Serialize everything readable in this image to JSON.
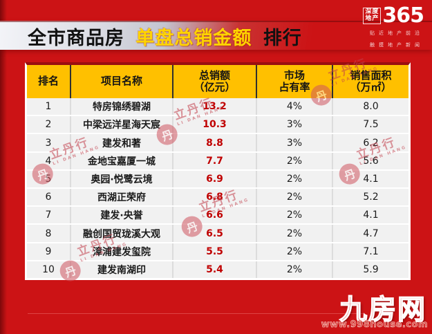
{
  "title": {
    "prefix": "全市商品房",
    "highlight": "单盘总销金额",
    "suffix": "排行"
  },
  "brand": {
    "small_line1": "深度",
    "small_line2": "地产",
    "big": "365",
    "tagline_line1": "贴近地产前沿",
    "tagline_line2": "触摸地产新闻"
  },
  "table": {
    "headers": {
      "rank": "排名",
      "name": "项目名称",
      "sales_line1": "总销额",
      "sales_line2": "（亿元）",
      "share_line1": "市场",
      "share_line2": "占有率",
      "area_line1": "销售面积",
      "area_line2": "（万㎡）"
    },
    "rows": [
      {
        "rank": "1",
        "name": "特房锦绣碧湖",
        "sales": "13.2",
        "share": "4%",
        "area": "8.0"
      },
      {
        "rank": "2",
        "name": "中梁远洋星海天宸",
        "sales": "10.3",
        "share": "3%",
        "area": "7.5"
      },
      {
        "rank": "3",
        "name": "建发和著",
        "sales": "8.8",
        "share": "3%",
        "area": "6.2"
      },
      {
        "rank": "4",
        "name": "金地宝嘉厦一城",
        "sales": "7.7",
        "share": "2%",
        "area": "5.6"
      },
      {
        "rank": "5",
        "name": "奥园·悦鹭云境",
        "sales": "6.9",
        "share": "2%",
        "area": "4.1"
      },
      {
        "rank": "6",
        "name": "西湖正荣府",
        "sales": "6.8",
        "share": "2%",
        "area": "5.2"
      },
      {
        "rank": "7",
        "name": "建发·央誉",
        "sales": "6.6",
        "share": "2%",
        "area": "4.1"
      },
      {
        "rank": "8",
        "name": "融创国贸珑溪大观",
        "sales": "6.5",
        "share": "2%",
        "area": "4.7"
      },
      {
        "rank": "9",
        "name": "漳浦建发玺院",
        "sales": "5.5",
        "share": "2%",
        "area": "7.1"
      },
      {
        "rank": "10",
        "name": "建发南湖印",
        "sales": "5.4",
        "share": "2%",
        "area": "5.9"
      }
    ]
  },
  "watermark": {
    "seal": "丹",
    "cn": "立丹行",
    "en": "LI DAN HANG"
  },
  "footer": {
    "site_name": "九房网",
    "site_url": "www.998house.com"
  },
  "colors": {
    "background": "#cc1315",
    "header_yellow": "#ffc000",
    "title_highlight": "#ffd400",
    "sales_red": "#c00000",
    "row_gray": "#f1f1f1"
  },
  "chart_data": {
    "type": "table",
    "title": "全市商品房 单盘总销金额 排行",
    "columns": [
      "排名",
      "项目名称",
      "总销额（亿元）",
      "市场占有率",
      "销售面积（万㎡）"
    ],
    "rows": [
      [
        "1",
        "特房锦绣碧湖",
        13.2,
        "4%",
        8.0
      ],
      [
        "2",
        "中梁远洋星海天宸",
        10.3,
        "3%",
        7.5
      ],
      [
        "3",
        "建发和著",
        8.8,
        "3%",
        6.2
      ],
      [
        "4",
        "金地宝嘉厦一城",
        7.7,
        "2%",
        5.6
      ],
      [
        "5",
        "奥园·悦鹭云境",
        6.9,
        "2%",
        4.1
      ],
      [
        "6",
        "西湖正荣府",
        6.8,
        "2%",
        5.2
      ],
      [
        "7",
        "建发·央誉",
        6.6,
        "2%",
        4.1
      ],
      [
        "8",
        "融创国贸珑溪大观",
        6.5,
        "2%",
        4.7
      ],
      [
        "9",
        "漳浦建发玺院",
        5.5,
        "2%",
        7.1
      ],
      [
        "10",
        "建发南湖印",
        5.4,
        "2%",
        5.9
      ]
    ]
  }
}
